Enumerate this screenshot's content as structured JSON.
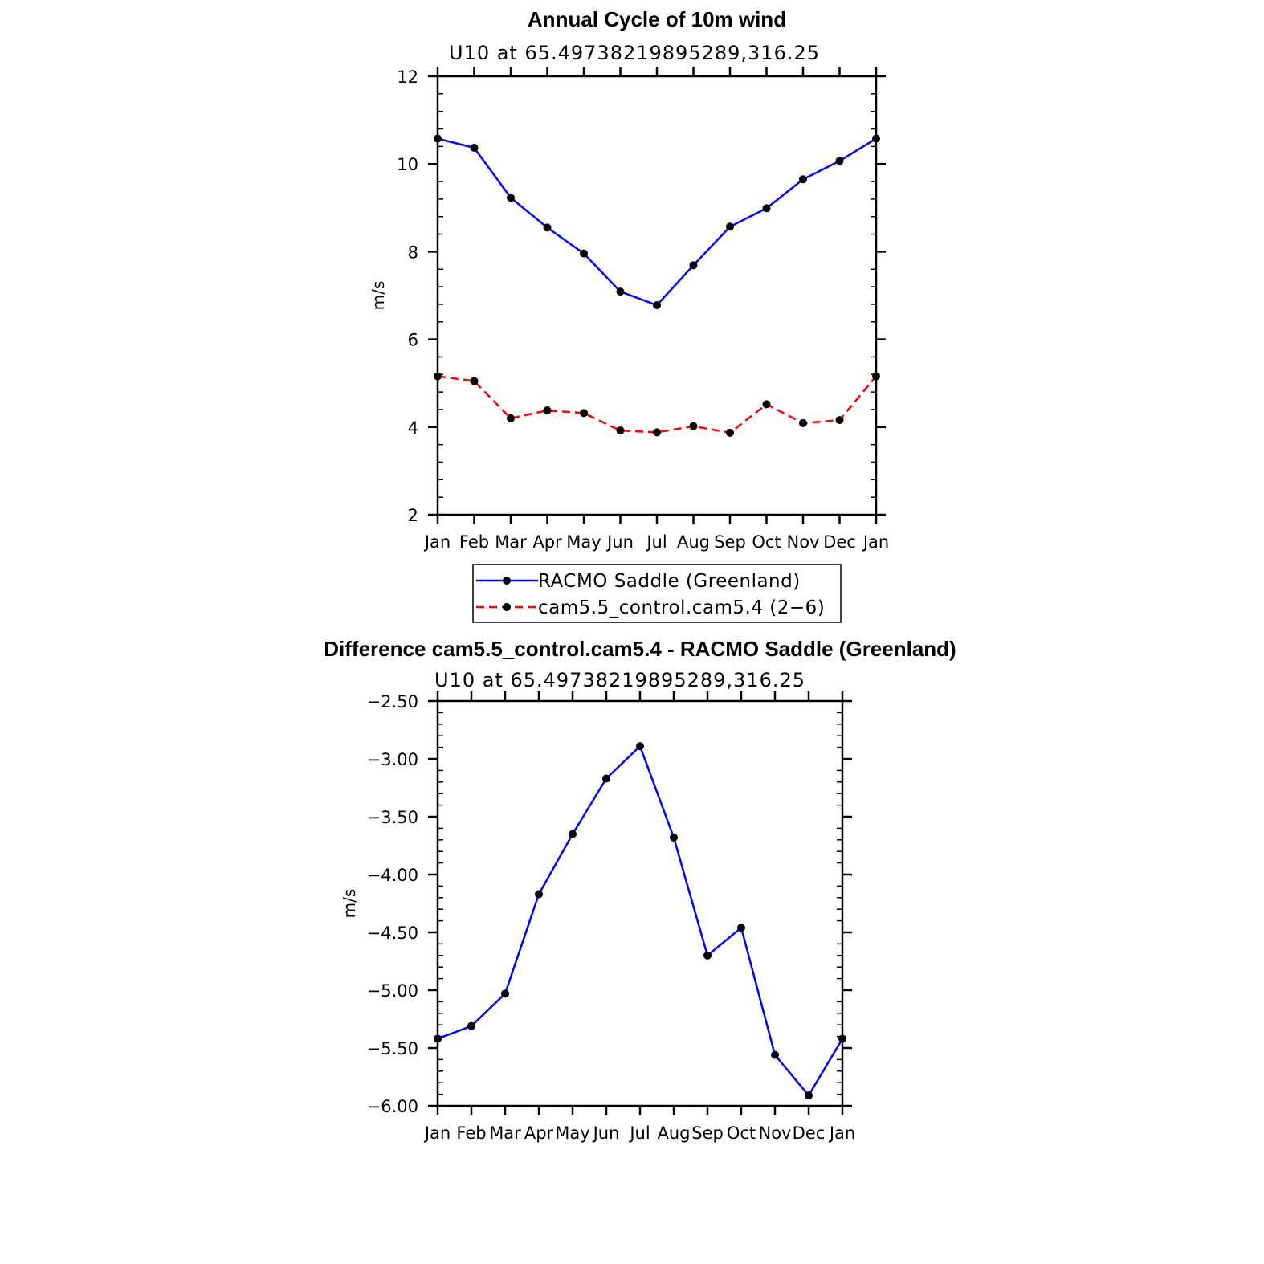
{
  "chart_data": [
    {
      "type": "line",
      "title": "Annual Cycle of 10m wind",
      "subtitle": "U10  at  65.49738219895289,316.25",
      "xlabel": "",
      "ylabel": "m/s",
      "categories": [
        "Jan",
        "Feb",
        "Mar",
        "Apr",
        "May",
        "Jun",
        "Jul",
        "Aug",
        "Sep",
        "Oct",
        "Nov",
        "Dec",
        "Jan"
      ],
      "ylim": [
        2,
        12
      ],
      "yticks": [
        2,
        4,
        6,
        8,
        10,
        12
      ],
      "ytick_labels": [
        "2",
        "4",
        "6",
        "8",
        "10",
        "12"
      ],
      "series": [
        {
          "name": "RACMO Saddle (Greenland)",
          "color": "#0000ff",
          "dash": "solid",
          "values": [
            10.58,
            10.37,
            9.23,
            8.55,
            7.96,
            7.09,
            6.78,
            7.69,
            8.57,
            8.99,
            9.65,
            10.07,
            10.58
          ]
        },
        {
          "name": "cam5.5_control.cam5.4 (2−6)",
          "color": "#ff0000",
          "dash": "dashed",
          "values": [
            5.16,
            5.05,
            4.2,
            4.38,
            4.32,
            3.92,
            3.88,
            4.02,
            3.87,
            4.52,
            4.09,
            4.16,
            5.16
          ]
        }
      ],
      "legend": "bottom"
    },
    {
      "type": "line",
      "title": "Difference cam5.5_control.cam5.4 - RACMO Saddle (Greenland)",
      "subtitle": "U10  at  65.49738219895289,316.25",
      "xlabel": "",
      "ylabel": "m/s",
      "categories": [
        "Jan",
        "Feb",
        "Mar",
        "Apr",
        "May",
        "Jun",
        "Jul",
        "Aug",
        "Sep",
        "Oct",
        "Nov",
        "Dec",
        "Jan"
      ],
      "ylim": [
        -6.0,
        -2.5
      ],
      "yticks": [
        -6.0,
        -5.5,
        -5.0,
        -4.5,
        -4.0,
        -3.5,
        -3.0,
        -2.5
      ],
      "ytick_labels": [
        "−6.00",
        "−5.50",
        "−5.00",
        "−4.50",
        "−4.00",
        "−3.50",
        "−3.00",
        "−2.50"
      ],
      "series": [
        {
          "name": "difference",
          "color": "#0000ff",
          "dash": "solid",
          "values": [
            -5.42,
            -5.31,
            -5.03,
            -4.17,
            -3.65,
            -3.17,
            -2.89,
            -3.68,
            -4.7,
            -4.46,
            -5.56,
            -5.91,
            -5.42
          ]
        }
      ]
    }
  ]
}
